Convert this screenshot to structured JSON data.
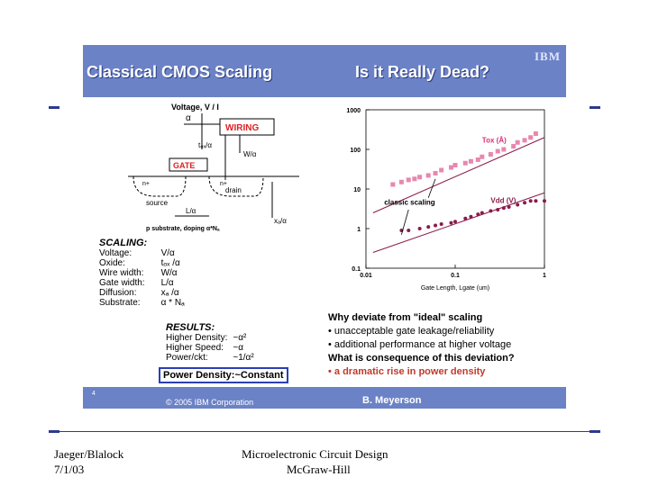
{
  "slide": {
    "title_left": "Classical CMOS Scaling",
    "title_right": "Is it Really Dead?",
    "brand": "IBM",
    "slide_number": "4",
    "copyright": "© 2005 IBM Corporation",
    "author": "B. Meyerson"
  },
  "diagram": {
    "voltage_label": "Voltage, V / l",
    "alpha": "α",
    "wiring": "WIRING",
    "tox": "t₀ₓ/α",
    "w": "W/α",
    "gate": "GATE",
    "n_plus_1": "n+",
    "n_plus_2": "n+",
    "source": "source",
    "drain": "drain",
    "l": "L/α",
    "xd": "xₐ/α",
    "substrate": "p substrate, doping α*Nₐ"
  },
  "scaling": {
    "heading": "SCALING:",
    "rows": [
      {
        "label": "Voltage:",
        "value": "V/α"
      },
      {
        "label": "Oxide:",
        "value": "tₒₓ /α"
      },
      {
        "label": "Wire width:",
        "value": "W/α"
      },
      {
        "label": "Gate width:",
        "value": "L/α"
      },
      {
        "label": "Diffusion:",
        "value": "xₐ /α"
      },
      {
        "label": "Substrate:",
        "value": "α * Nₐ"
      }
    ]
  },
  "results": {
    "heading": "RESULTS:",
    "rows": [
      {
        "label": "Higher Density:",
        "value": "~α²"
      },
      {
        "label": "Higher Speed:",
        "value": "~α"
      },
      {
        "label": "Power/ckt:",
        "value": "~1/α²"
      }
    ],
    "power_density": "Power Density:~Constant"
  },
  "chart_data": {
    "type": "scatter",
    "xlabel": "Gate Length, Lgate (um)",
    "ylabel": "",
    "x_scale": "log",
    "y_scale": "log",
    "xlim": [
      0.01,
      1
    ],
    "ylim": [
      0.1,
      1000
    ],
    "x_ticks": [
      "0.01",
      "0.1",
      "1"
    ],
    "y_ticks": [
      "1000",
      "100",
      "10",
      "1",
      "0.1"
    ],
    "annotations": [
      "Tox (Å)",
      "Vdd (V)",
      "classic scaling"
    ],
    "series": [
      {
        "name": "Tox (Å)",
        "color": "#e887b0",
        "x": [
          0.8,
          0.7,
          0.6,
          0.5,
          0.45,
          0.35,
          0.3,
          0.25,
          0.2,
          0.18,
          0.15,
          0.13,
          0.1,
          0.09,
          0.07,
          0.06,
          0.05,
          0.04,
          0.035,
          0.03,
          0.025,
          0.02
        ],
        "y": [
          250,
          200,
          170,
          150,
          120,
          100,
          90,
          75,
          65,
          55,
          50,
          45,
          40,
          35,
          30,
          25,
          22,
          20,
          18,
          17,
          15,
          13
        ]
      },
      {
        "name": "Vdd (V)",
        "color": "#8a1a4a",
        "x": [
          1,
          0.8,
          0.7,
          0.6,
          0.5,
          0.4,
          0.35,
          0.3,
          0.25,
          0.2,
          0.18,
          0.15,
          0.13,
          0.1,
          0.09,
          0.07,
          0.06,
          0.05,
          0.04,
          0.03,
          0.025
        ],
        "y": [
          5,
          5,
          5,
          4.5,
          4,
          3.5,
          3.3,
          3,
          2.8,
          2.5,
          2.3,
          2,
          1.8,
          1.5,
          1.4,
          1.3,
          1.2,
          1.1,
          1.0,
          0.9,
          0.9
        ]
      }
    ]
  },
  "bullets": {
    "question1": "Why deviate from \"ideal\" scaling",
    "b1": "• unacceptable gate leakage/reliability",
    "b2": "• additional performance at higher voltage",
    "question2": "What is consequence of this deviation?",
    "b3": "• a dramatic rise in power density"
  },
  "footer": {
    "left_line1": "Jaeger/Blalock",
    "left_line2": "7/1/03",
    "center_line1": "Microelectronic Circuit Design",
    "center_line2": "McGraw-Hill"
  }
}
